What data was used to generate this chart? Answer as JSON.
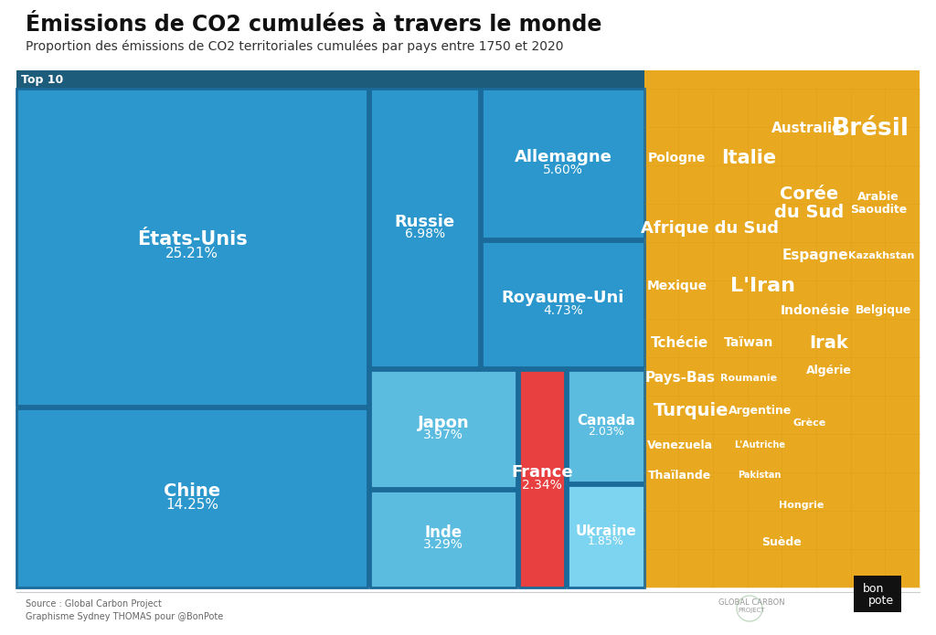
{
  "title": "Émissions de CO2 cumulées à travers le monde",
  "subtitle": "Proportion des émissions de CO2 territoriales cumulées par pays entre 1750 et 2020",
  "top10_label": "Top 10",
  "background_color": "#ffffff",
  "blue_mid": "#2b97cc",
  "blue_dark_bg": "#1a6a9a",
  "blue_header": "#1d5c7a",
  "blue_light": "#5bbce0",
  "blue_lighter": "#7dd4f0",
  "red_color": "#e84040",
  "gold_color": "#e8a820",
  "source_text": "Source : Global Carbon Project\nGraphisme Sydney THOMAS pour @BonPote",
  "top10": [
    {
      "name": "États-Unis",
      "pct": 25.21
    },
    {
      "name": "Chine",
      "pct": 14.25
    },
    {
      "name": "Russie",
      "pct": 6.98
    },
    {
      "name": "Allemagne",
      "pct": 5.6
    },
    {
      "name": "Royaume-Uni",
      "pct": 4.73
    },
    {
      "name": "Japon",
      "pct": 3.97
    },
    {
      "name": "Inde",
      "pct": 3.29
    },
    {
      "name": "France",
      "pct": 2.34
    },
    {
      "name": "Canada",
      "pct": 2.03
    },
    {
      "name": "Ukraine",
      "pct": 1.85
    }
  ],
  "gold_positions": [
    {
      "name": "Brésil",
      "xf": 0.82,
      "yf": 0.92,
      "fs": 19
    },
    {
      "name": "Australie",
      "xf": 0.59,
      "yf": 0.92,
      "fs": 11
    },
    {
      "name": "Italie",
      "xf": 0.38,
      "yf": 0.86,
      "fs": 15
    },
    {
      "name": "Pologne",
      "xf": 0.12,
      "yf": 0.86,
      "fs": 10
    },
    {
      "name": "Corée\ndu Sud",
      "xf": 0.6,
      "yf": 0.77,
      "fs": 14
    },
    {
      "name": "Arabie\nSaoudite",
      "xf": 0.85,
      "yf": 0.77,
      "fs": 9
    },
    {
      "name": "Afrique du Sud",
      "xf": 0.24,
      "yf": 0.72,
      "fs": 13
    },
    {
      "name": "Espagne",
      "xf": 0.62,
      "yf": 0.665,
      "fs": 11
    },
    {
      "name": "Kazakhstan",
      "xf": 0.86,
      "yf": 0.665,
      "fs": 8
    },
    {
      "name": "L'Iran",
      "xf": 0.43,
      "yf": 0.605,
      "fs": 16
    },
    {
      "name": "Mexique",
      "xf": 0.12,
      "yf": 0.605,
      "fs": 10
    },
    {
      "name": "Indonésie",
      "xf": 0.62,
      "yf": 0.555,
      "fs": 10
    },
    {
      "name": "Belgique",
      "xf": 0.87,
      "yf": 0.555,
      "fs": 9
    },
    {
      "name": "Irak",
      "xf": 0.67,
      "yf": 0.49,
      "fs": 14
    },
    {
      "name": "Taïwan",
      "xf": 0.38,
      "yf": 0.49,
      "fs": 10
    },
    {
      "name": "Tchécie",
      "xf": 0.13,
      "yf": 0.49,
      "fs": 11
    },
    {
      "name": "Algérie",
      "xf": 0.67,
      "yf": 0.435,
      "fs": 9
    },
    {
      "name": "Pays-Bas",
      "xf": 0.13,
      "yf": 0.42,
      "fs": 11
    },
    {
      "name": "Roumanie",
      "xf": 0.38,
      "yf": 0.42,
      "fs": 8
    },
    {
      "name": "Turquie",
      "xf": 0.17,
      "yf": 0.355,
      "fs": 14
    },
    {
      "name": "Argentine",
      "xf": 0.42,
      "yf": 0.355,
      "fs": 9
    },
    {
      "name": "Grèce",
      "xf": 0.6,
      "yf": 0.33,
      "fs": 8
    },
    {
      "name": "Venezuela",
      "xf": 0.13,
      "yf": 0.285,
      "fs": 9
    },
    {
      "name": "L'Autriche",
      "xf": 0.42,
      "yf": 0.285,
      "fs": 7
    },
    {
      "name": "Thaïlande",
      "xf": 0.13,
      "yf": 0.225,
      "fs": 9
    },
    {
      "name": "Pakistan",
      "xf": 0.42,
      "yf": 0.225,
      "fs": 7
    },
    {
      "name": "Hongrie",
      "xf": 0.57,
      "yf": 0.165,
      "fs": 8
    },
    {
      "name": "Suède",
      "xf": 0.5,
      "yf": 0.09,
      "fs": 9
    }
  ]
}
